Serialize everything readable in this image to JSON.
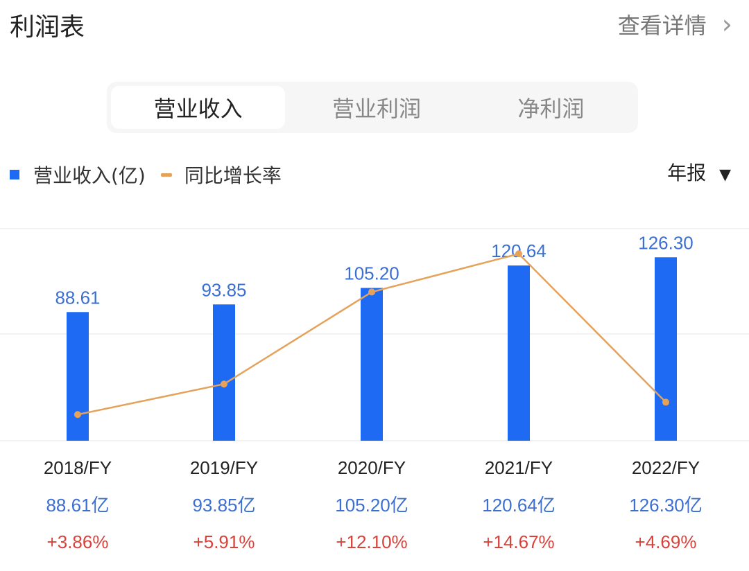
{
  "header": {
    "title": "利润表",
    "detail_link": "查看详情",
    "chevron": "›"
  },
  "tabs": [
    {
      "label": "营业收入",
      "active": true
    },
    {
      "label": "营业利润",
      "active": false
    },
    {
      "label": "净利润",
      "active": false
    }
  ],
  "legend": {
    "bar": "营业收入(亿)",
    "line": "同比增长率"
  },
  "period_select": {
    "label": "年报",
    "caret": "▼"
  },
  "colors": {
    "bar": "#1f6af2",
    "line": "#e4a25b",
    "value_text": "#3b6fd1",
    "growth_text": "#d9423a"
  },
  "chart_data": {
    "type": "bar+line",
    "categories": [
      "2018/FY",
      "2019/FY",
      "2020/FY",
      "2021/FY",
      "2022/FY"
    ],
    "series": [
      {
        "name": "营业收入(亿)",
        "type": "bar",
        "values": [
          88.61,
          93.85,
          105.2,
          120.64,
          126.3
        ],
        "labels": [
          "88.61",
          "93.85",
          "105.20",
          "120.64",
          "126.30"
        ]
      },
      {
        "name": "同比增长率",
        "type": "line",
        "values": [
          3.86,
          5.91,
          12.1,
          14.67,
          4.69
        ]
      }
    ],
    "value_row": [
      "88.61亿",
      "93.85亿",
      "105.20亿",
      "120.64亿",
      "126.30亿"
    ],
    "growth_row": [
      "+3.86%",
      "+5.91%",
      "+12.10%",
      "+14.67%",
      "+4.69%"
    ],
    "bar_ylim": [
      0,
      146
    ],
    "line_ylim": [
      2.1,
      16.36
    ],
    "grid": true
  }
}
